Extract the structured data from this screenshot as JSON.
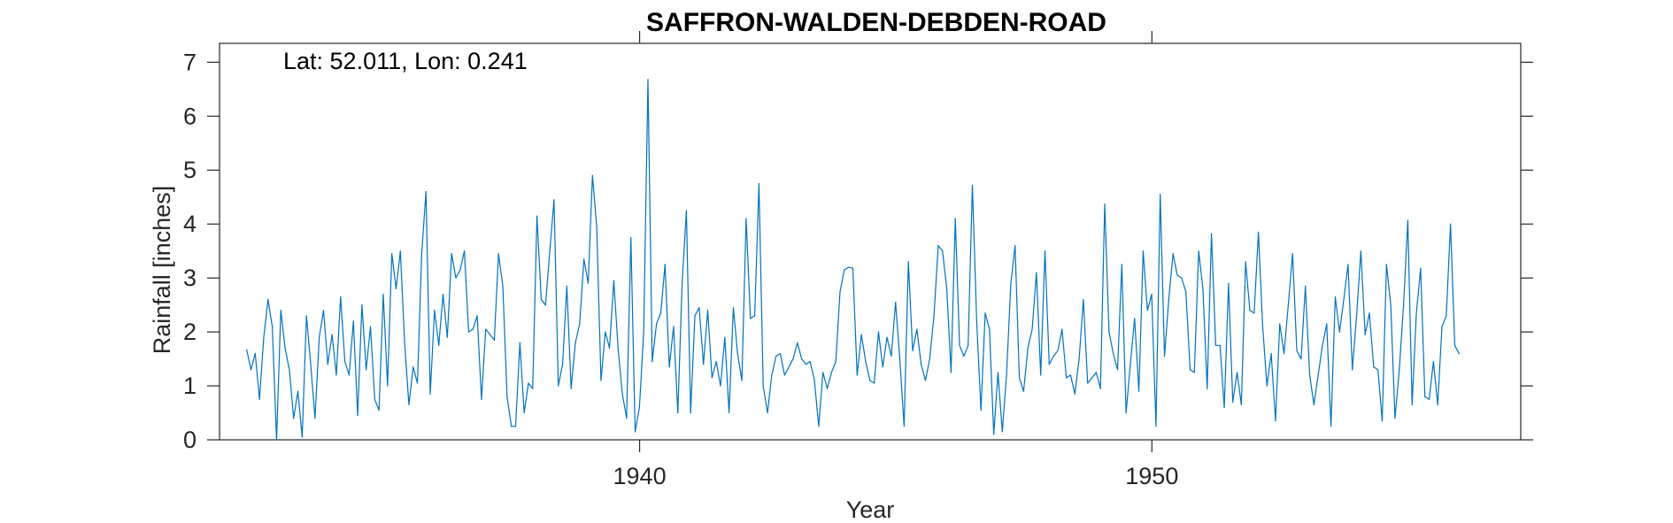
{
  "chart_data": {
    "type": "line",
    "title": "SAFFRON-WALDEN-DEBDEN-ROAD",
    "annotation": "Lat: 52.011, Lon: 0.241",
    "xlabel": "Year",
    "ylabel": "Rainfall [inches]",
    "xlim": [
      1931.8,
      1957.2
    ],
    "ylim": [
      0,
      7.35
    ],
    "xticks": [
      1940,
      1950
    ],
    "yticks": [
      0,
      1,
      2,
      3,
      4,
      5,
      6,
      7
    ],
    "grid": false,
    "series_color": "#0072BD",
    "series": [
      {
        "x_start": 1932.33,
        "x_step": 0.08333,
        "values": [
          1.67,
          1.3,
          1.6,
          0.75,
          1.9,
          2.6,
          2.1,
          0.0,
          2.4,
          1.7,
          1.3,
          0.4,
          0.9,
          0.05,
          2.3,
          1.4,
          0.4,
          1.9,
          2.4,
          1.4,
          1.95,
          1.2,
          2.65,
          1.45,
          1.2,
          2.2,
          0.45,
          2.5,
          1.3,
          2.1,
          0.75,
          0.55,
          2.7,
          1.0,
          3.45,
          2.8,
          3.5,
          1.8,
          0.65,
          1.35,
          1.05,
          3.45,
          4.6,
          0.85,
          2.4,
          1.75,
          2.7,
          1.9,
          3.45,
          3.0,
          3.15,
          3.5,
          2.0,
          2.05,
          2.3,
          0.75,
          2.05,
          1.95,
          1.85,
          3.45,
          2.85,
          0.8,
          0.25,
          0.25,
          1.8,
          0.5,
          1.05,
          0.95,
          4.15,
          2.6,
          2.5,
          3.5,
          4.45,
          1.0,
          1.4,
          2.85,
          0.95,
          1.8,
          2.15,
          3.35,
          2.9,
          4.9,
          3.95,
          1.1,
          2.0,
          1.7,
          2.95,
          1.7,
          0.85,
          0.4,
          3.75,
          0.15,
          0.6,
          2.0,
          6.68,
          1.45,
          2.15,
          2.35,
          3.25,
          1.35,
          2.1,
          0.5,
          2.9,
          4.25,
          0.5,
          2.3,
          2.45,
          1.4,
          2.4,
          1.15,
          1.45,
          1.0,
          1.9,
          0.5,
          2.45,
          1.6,
          1.1,
          4.1,
          2.25,
          2.3,
          4.75,
          1.0,
          0.5,
          1.2,
          1.55,
          1.6,
          1.2,
          1.35,
          1.5,
          1.8,
          1.5,
          1.4,
          1.45,
          1.1,
          0.25,
          1.25,
          0.95,
          1.25,
          1.45,
          2.75,
          3.15,
          3.2,
          3.18,
          1.2,
          1.95,
          1.45,
          1.1,
          1.05,
          2.0,
          1.35,
          1.9,
          1.55,
          2.55,
          1.5,
          0.25,
          3.3,
          1.65,
          2.05,
          1.4,
          1.1,
          1.5,
          2.3,
          3.6,
          3.5,
          2.8,
          1.25,
          4.1,
          1.75,
          1.55,
          1.75,
          4.72,
          2.2,
          0.55,
          2.35,
          2.05,
          0.1,
          1.25,
          0.15,
          1.2,
          2.9,
          3.6,
          1.15,
          0.9,
          1.7,
          2.05,
          3.1,
          1.2,
          3.5,
          1.4,
          1.55,
          1.65,
          2.05,
          1.15,
          1.2,
          0.85,
          1.5,
          2.6,
          1.05,
          1.15,
          1.25,
          0.95,
          4.37,
          2.0,
          1.6,
          1.3,
          3.25,
          0.5,
          1.4,
          2.25,
          0.9,
          3.5,
          2.4,
          2.7,
          0.25,
          4.55,
          1.55,
          2.6,
          3.45,
          3.05,
          3.0,
          2.75,
          1.3,
          1.25,
          3.5,
          2.8,
          0.95,
          3.82,
          1.75,
          1.75,
          0.6,
          2.9,
          0.7,
          1.25,
          0.65,
          3.3,
          2.4,
          2.35,
          3.85,
          2.1,
          1.0,
          1.6,
          0.35,
          2.15,
          1.6,
          2.5,
          3.45,
          1.65,
          1.5,
          2.85,
          1.2,
          0.65,
          1.2,
          1.75,
          2.15,
          0.25,
          2.65,
          2.0,
          2.6,
          3.25,
          1.3,
          2.3,
          3.5,
          1.95,
          2.35,
          1.35,
          1.3,
          0.35,
          3.25,
          2.5,
          0.4,
          1.3,
          2.5,
          4.07,
          0.65,
          2.35,
          3.18,
          0.8,
          0.75,
          1.45,
          0.65,
          2.1,
          2.3,
          4.0,
          1.75,
          1.6
        ]
      }
    ]
  }
}
